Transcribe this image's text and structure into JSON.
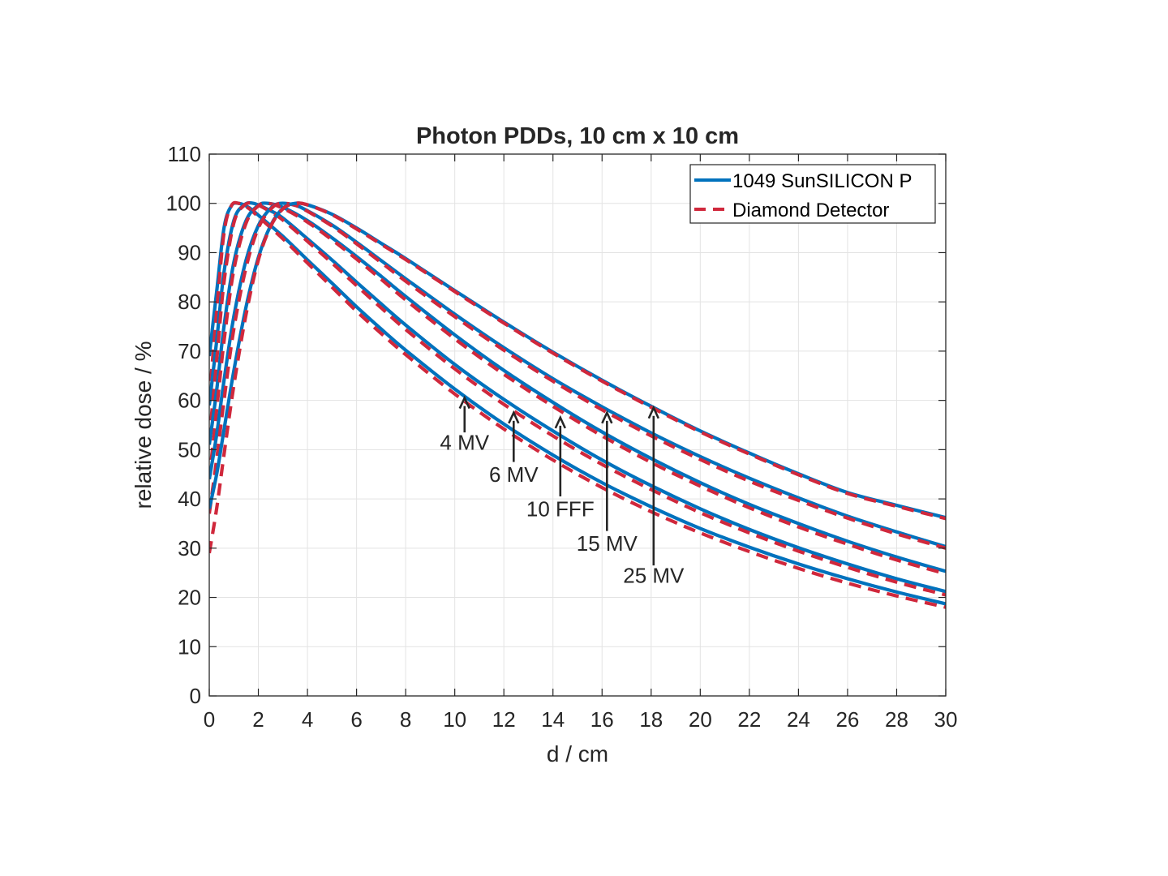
{
  "chart_data": {
    "type": "line",
    "title": "Photon PDDs, 10 cm x 10 cm",
    "xlabel": "d / cm",
    "ylabel": "relative dose / %",
    "xlim": [
      0,
      30
    ],
    "ylim": [
      0,
      110
    ],
    "xticks": [
      0,
      2,
      4,
      6,
      8,
      10,
      12,
      14,
      16,
      18,
      20,
      22,
      24,
      26,
      28,
      30
    ],
    "yticks": [
      0,
      10,
      20,
      30,
      40,
      50,
      60,
      70,
      80,
      90,
      100,
      110
    ],
    "grid": true,
    "legend_position": "top-right",
    "colors": {
      "silicon": "#0072BD",
      "diamond": "#D0283C"
    },
    "series": [
      {
        "name": "1049 SunSILICON P",
        "style": "solid"
      },
      {
        "name": "Diamond Detector",
        "style": "dashed"
      }
    ],
    "beams": [
      {
        "label": "4 MV",
        "silicon": {
          "x": [
            0,
            0.3,
            0.6,
            0.9,
            1.2,
            1.6,
            2,
            3,
            4,
            5,
            6,
            7,
            8,
            10,
            12,
            14,
            16,
            18,
            20,
            22,
            24,
            26,
            28,
            30
          ],
          "y": [
            69,
            82,
            95,
            99.5,
            100,
            99.2,
            97.6,
            93.3,
            88.5,
            83.8,
            79,
            74.5,
            70.2,
            62.3,
            55.2,
            48.9,
            43.3,
            38.4,
            34,
            30.2,
            26.8,
            23.8,
            21.1,
            18.7
          ]
        },
        "diamond": {
          "x": [
            0,
            0.3,
            0.6,
            0.9,
            1.2,
            1.6,
            2,
            3,
            4,
            5,
            6,
            7,
            8,
            10,
            12,
            14,
            16,
            18,
            20,
            22,
            24,
            26,
            28,
            30
          ],
          "y": [
            60,
            78,
            94,
            99.5,
            100,
            99,
            97.3,
            92.8,
            87.9,
            83,
            78.1,
            73.6,
            69.3,
            61.3,
            54.2,
            47.9,
            42.3,
            37.4,
            33.1,
            29.3,
            25.9,
            22.9,
            20.3,
            18
          ]
        }
      },
      {
        "label": "6 MV",
        "silicon": {
          "x": [
            0,
            0.3,
            0.6,
            1,
            1.4,
            1.8,
            2.5,
            3,
            4,
            5,
            6,
            7,
            8,
            10,
            12,
            14,
            16,
            18,
            20,
            22,
            24,
            26,
            28,
            30
          ],
          "y": [
            59,
            72,
            86,
            96.5,
            99.6,
            100,
            98.5,
            97,
            92.8,
            88.5,
            84,
            79.6,
            75.3,
            67.3,
            60.2,
            53.8,
            47.9,
            42.7,
            38,
            33.8,
            30.1,
            26.8,
            23.8,
            21.2
          ]
        },
        "diamond": {
          "x": [
            0,
            0.3,
            0.6,
            1,
            1.4,
            1.8,
            2.5,
            3,
            4,
            5,
            6,
            7,
            8,
            10,
            12,
            14,
            16,
            18,
            20,
            22,
            24,
            26,
            28,
            30
          ],
          "y": [
            52,
            68,
            84,
            96,
            99.5,
            100,
            98.3,
            96.6,
            92.3,
            87.9,
            83.3,
            78.8,
            74.4,
            66.4,
            59.2,
            52.8,
            47,
            41.9,
            37.2,
            33.1,
            29.4,
            26.1,
            23.1,
            20.5
          ]
        }
      },
      {
        "label": "10 FFF",
        "silicon": {
          "x": [
            0,
            0.3,
            0.6,
            1,
            1.5,
            2,
            2.4,
            3,
            4,
            5,
            6,
            7,
            8,
            10,
            12,
            14,
            16,
            18,
            20,
            22,
            24,
            26,
            28,
            30
          ],
          "y": [
            51,
            62,
            75,
            88,
            96.5,
            99.6,
            100,
            99.2,
            96.5,
            93,
            89.2,
            85.2,
            81.1,
            73.3,
            66.1,
            59.6,
            53.6,
            48.2,
            43.3,
            38.9,
            35,
            31.4,
            28.2,
            25.3
          ]
        },
        "diamond": {
          "x": [
            0,
            0.3,
            0.6,
            1,
            1.5,
            2,
            2.4,
            3,
            4,
            5,
            6,
            7,
            8,
            10,
            12,
            14,
            16,
            18,
            20,
            22,
            24,
            26,
            28,
            30
          ],
          "y": [
            44,
            58,
            72,
            86.5,
            96,
            99.5,
            100,
            99,
            96.2,
            92.6,
            88.7,
            84.6,
            80.4,
            72.5,
            65.3,
            58.8,
            52.8,
            47.4,
            42.6,
            38.2,
            34.3,
            30.8,
            27.6,
            24.8
          ]
        }
      },
      {
        "label": "15 MV",
        "silicon": {
          "x": [
            0,
            0.3,
            0.6,
            1,
            1.5,
            2,
            2.5,
            2.9,
            3.5,
            4,
            5,
            6,
            7,
            8,
            10,
            12,
            14,
            16,
            18,
            20,
            22,
            24,
            26,
            28,
            30
          ],
          "y": [
            44,
            53,
            64,
            77,
            88.5,
            95.5,
            99,
            100,
            99.6,
            98.5,
            95.6,
            92.1,
            88.4,
            84.7,
            77.5,
            70.7,
            64.4,
            58.7,
            53.4,
            48.6,
            44.2,
            40.2,
            36.5,
            33.3,
            30.3
          ]
        },
        "diamond": {
          "x": [
            0,
            0.3,
            0.6,
            1,
            1.5,
            2,
            2.5,
            2.9,
            3.5,
            4,
            5,
            6,
            7,
            8,
            10,
            12,
            14,
            16,
            18,
            20,
            22,
            24,
            26,
            28,
            30
          ],
          "y": [
            37,
            48,
            60,
            74.5,
            87,
            95,
            98.8,
            100,
            99.6,
            98.4,
            95.4,
            91.8,
            88,
            84.2,
            77,
            70.2,
            63.9,
            58.1,
            52.8,
            48,
            43.6,
            39.7,
            36.1,
            32.9,
            30
          ]
        }
      },
      {
        "label": "25 MV",
        "silicon": {
          "x": [
            0,
            0.3,
            0.6,
            1,
            1.5,
            2,
            2.5,
            3,
            3.5,
            4,
            5,
            6,
            7,
            8,
            10,
            12,
            14,
            16,
            18,
            20,
            22,
            24,
            26,
            28,
            30
          ],
          "y": [
            38,
            45,
            54,
            66,
            79,
            89,
            95.5,
            99,
            100,
            99.7,
            97.8,
            95,
            91.9,
            88.8,
            82.3,
            75.9,
            69.8,
            64.1,
            58.8,
            53.8,
            49.3,
            45.1,
            41.3,
            38.7,
            36.2
          ]
        },
        "diamond": {
          "x": [
            0,
            0.3,
            0.6,
            1,
            1.5,
            2,
            2.5,
            3,
            3.5,
            4,
            5,
            6,
            7,
            8,
            10,
            12,
            14,
            16,
            18,
            20,
            22,
            24,
            26,
            28,
            30
          ],
          "y": [
            29,
            38,
            49,
            63,
            77.5,
            88.5,
            95.3,
            98.9,
            100,
            99.7,
            97.7,
            94.8,
            91.7,
            88.6,
            82.1,
            75.7,
            69.6,
            63.9,
            58.6,
            53.6,
            49.1,
            44.9,
            41.1,
            38.5,
            36
          ]
        }
      }
    ],
    "annotations": [
      {
        "label": "4 MV",
        "arrow_x": 10.4,
        "arrow_tail_y": 53.5,
        "arrow_head_y": 60.5,
        "text_x": 10.4,
        "text_y": 50
      },
      {
        "label": "6 MV",
        "arrow_x": 12.4,
        "arrow_tail_y": 47.5,
        "arrow_head_y": 57.5,
        "text_x": 12.4,
        "text_y": 43.5
      },
      {
        "label": "10 FFF",
        "arrow_x": 14.3,
        "arrow_tail_y": 40.5,
        "arrow_head_y": 56.5,
        "text_x": 14.3,
        "text_y": 36.5
      },
      {
        "label": "15 MV",
        "arrow_x": 16.2,
        "arrow_tail_y": 33.5,
        "arrow_head_y": 57.5,
        "text_x": 16.2,
        "text_y": 29.5
      },
      {
        "label": "25 MV",
        "arrow_x": 18.1,
        "arrow_tail_y": 26.5,
        "arrow_head_y": 58.5,
        "text_x": 18.1,
        "text_y": 23
      }
    ]
  }
}
